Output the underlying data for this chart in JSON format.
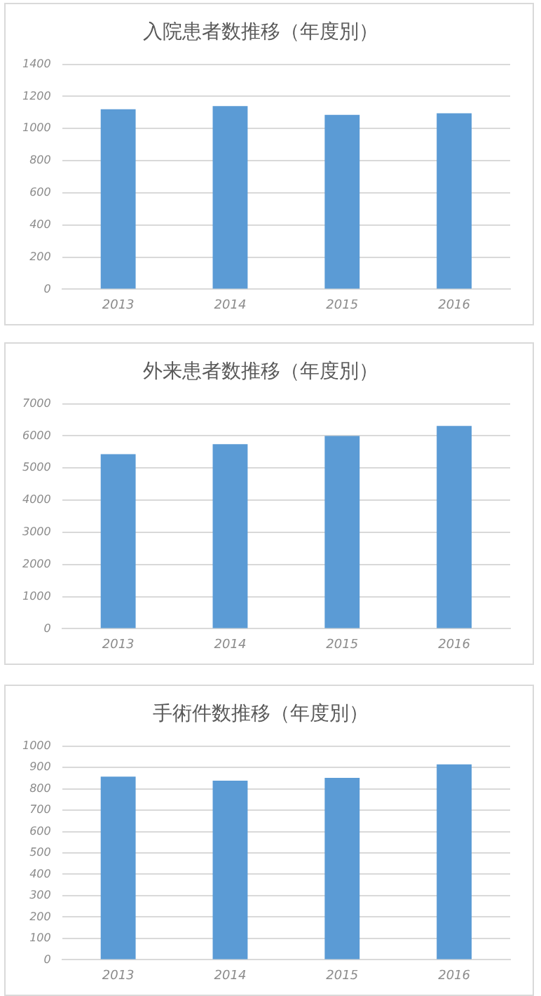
{
  "chart_data": [
    {
      "type": "bar",
      "title": "入院患者数推移（年度別）",
      "categories": [
        "2013",
        "2014",
        "2015",
        "2016"
      ],
      "values": [
        1120,
        1140,
        1085,
        1095
      ],
      "color": "#5b9bd5",
      "ylim": [
        0,
        1400
      ],
      "yticks": [
        0,
        200,
        400,
        600,
        800,
        1000,
        1200,
        1400
      ],
      "grid": "y"
    },
    {
      "type": "bar",
      "title": "外来患者数推移（年度別）",
      "categories": [
        "2013",
        "2014",
        "2015",
        "2016"
      ],
      "values": [
        5430,
        5740,
        6000,
        6310
      ],
      "color": "#5b9bd5",
      "ylim": [
        0,
        7000
      ],
      "yticks": [
        0,
        1000,
        2000,
        3000,
        4000,
        5000,
        6000,
        7000
      ],
      "grid": "y"
    },
    {
      "type": "bar",
      "title": "手術件数推移（年度別）",
      "categories": [
        "2013",
        "2014",
        "2015",
        "2016"
      ],
      "values": [
        857,
        838,
        851,
        914
      ],
      "color": "#5b9bd5",
      "ylim": [
        0,
        1000
      ],
      "yticks": [
        0,
        100,
        200,
        300,
        400,
        500,
        600,
        700,
        800,
        900,
        1000
      ],
      "grid": "y"
    }
  ]
}
